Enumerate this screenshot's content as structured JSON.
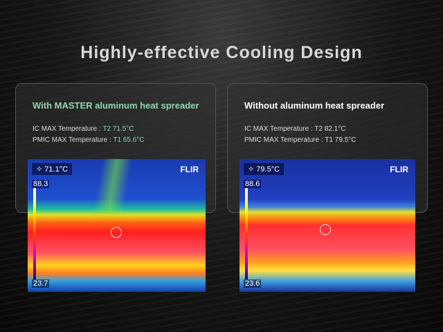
{
  "title": "Highly-effective Cooling Design",
  "panels": [
    {
      "heading": "With MASTER aluminum heat spreader",
      "ic_label": "IC MAX Temperature : ",
      "ic_value": "T2 71.5°C",
      "pmic_label": "PMIC MAX Temperature : ",
      "pmic_value": "T1 65.6°C",
      "heading_color": "#8fd8b0",
      "value_color": "#8fd8b0",
      "thermal": {
        "spot": "71.1°C",
        "max": "88.3",
        "min": "23.7",
        "brand": "FLIR"
      }
    },
    {
      "heading": "Without aluminum heat spreader",
      "ic_label": "IC MAX Temperature : ",
      "ic_value": "T2 82.1°C",
      "pmic_label": "PMIC MAX Temperature : ",
      "pmic_value": "T1 79.5°C",
      "heading_color": "#ffffff",
      "value_color": "#dddddd",
      "thermal": {
        "spot": "79.5°C",
        "max": "88.6",
        "min": "23.6",
        "brand": "FLIR"
      }
    }
  ]
}
